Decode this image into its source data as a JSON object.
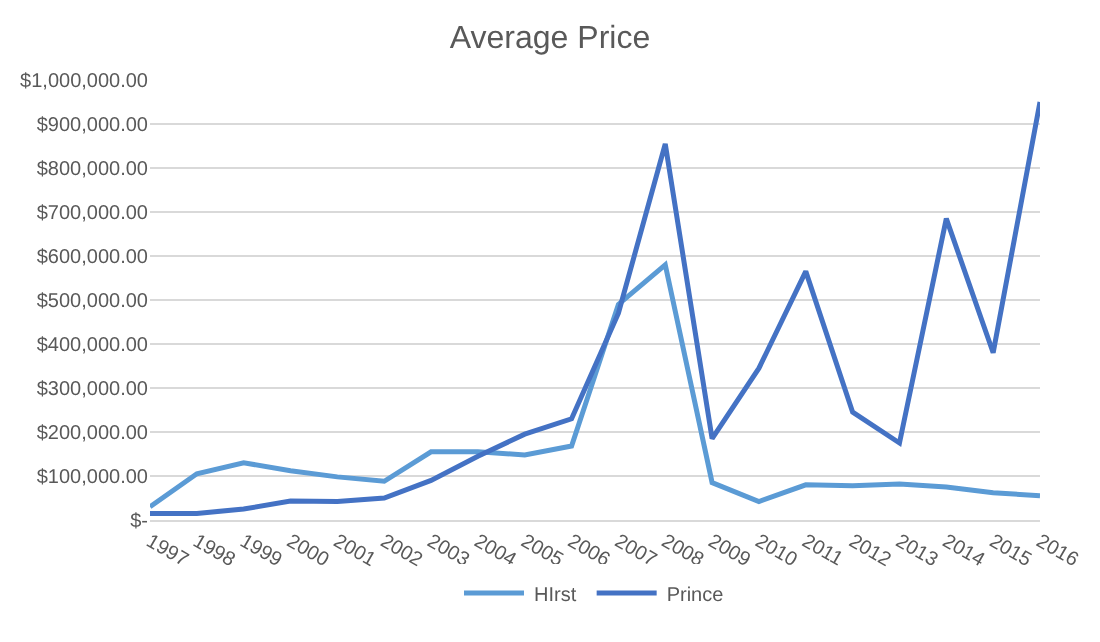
{
  "chart_data": {
    "type": "line",
    "title": "Average Price",
    "categories": [
      "1997",
      "1998",
      "1999",
      "2000",
      "2001",
      "2002",
      "2003",
      "2004",
      "2005",
      "2006",
      "2007",
      "2008",
      "2009",
      "2010",
      "2011",
      "2012",
      "2013",
      "2014",
      "2015",
      "2016"
    ],
    "series": [
      {
        "name": "HIrst",
        "color": "#5b9bd5",
        "values": [
          30000,
          105000,
          130000,
          112000,
          98000,
          88000,
          155000,
          155000,
          148000,
          168000,
          490000,
          580000,
          85000,
          42000,
          80000,
          78000,
          82000,
          75000,
          62000,
          55000
        ]
      },
      {
        "name": "Prince",
        "color": "#4472c4",
        "values": [
          15000,
          15000,
          25000,
          43000,
          42000,
          50000,
          90000,
          145000,
          195000,
          230000,
          470000,
          855000,
          185000,
          345000,
          565000,
          245000,
          175000,
          685000,
          380000,
          950000
        ]
      }
    ],
    "ylim": [
      0,
      1000000
    ],
    "yticks": [
      {
        "value": 0,
        "label": "$-"
      },
      {
        "value": 100000,
        "label": "$100,000.00"
      },
      {
        "value": 200000,
        "label": "$200,000.00"
      },
      {
        "value": 300000,
        "label": "$300,000.00"
      },
      {
        "value": 400000,
        "label": "$400,000.00"
      },
      {
        "value": 500000,
        "label": "$500,000.00"
      },
      {
        "value": 600000,
        "label": "$600,000.00"
      },
      {
        "value": 700000,
        "label": "$700,000.00"
      },
      {
        "value": 800000,
        "label": "$800,000.00"
      },
      {
        "value": 900000,
        "label": "$900,000.00"
      },
      {
        "value": 1000000,
        "label": "$1,000,000.00"
      }
    ],
    "grid": "y",
    "legend": "bottom",
    "marker": "none",
    "line_style": "solid"
  }
}
